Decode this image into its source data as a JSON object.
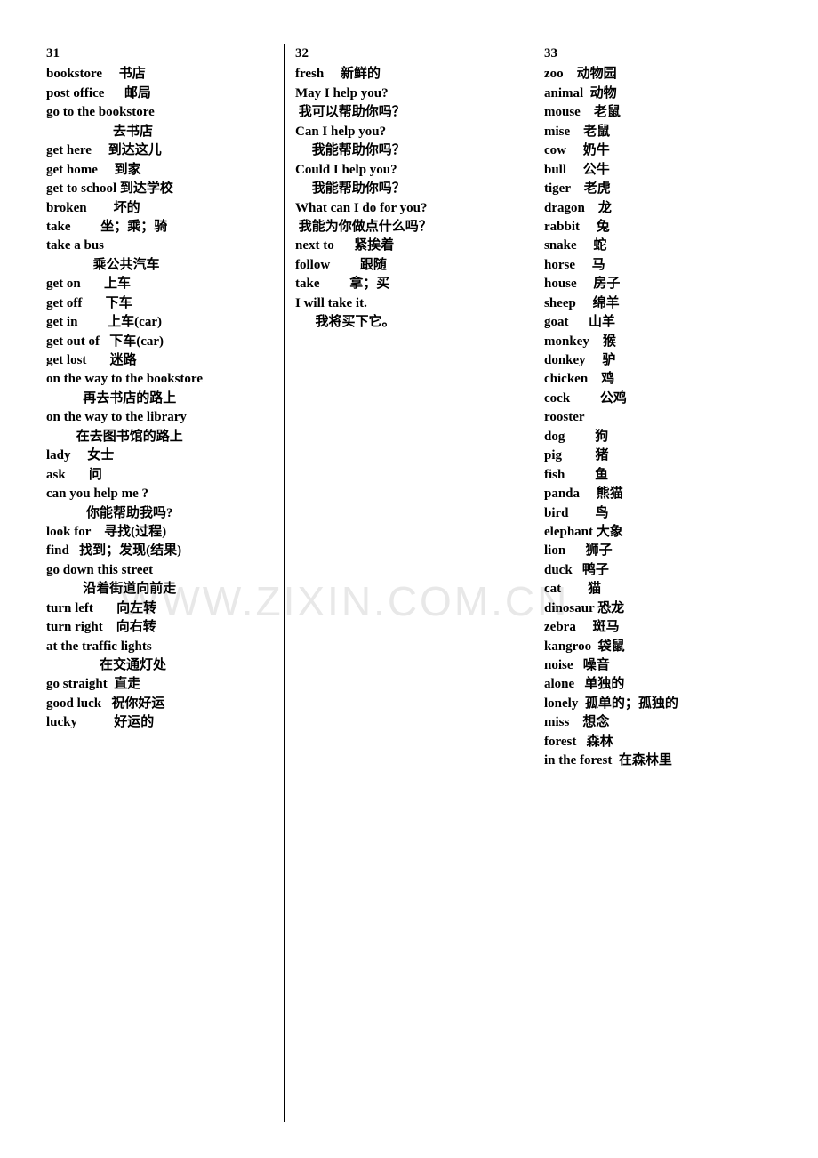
{
  "watermark": "WWW.ZIXIN.COM.CN",
  "columns": [
    {
      "lesson": "31",
      "lines": [
        "bookstore     书店",
        "post office      邮局",
        "go to the bookstore",
        "                    去书店",
        "get here     到达这儿",
        "get home     到家",
        "get to school 到达学校",
        "broken        坏的",
        "take         坐；乘；骑",
        "take a bus",
        "              乘公共汽车",
        "get on       上车",
        "get off       下车",
        "get in         上车(car)",
        "get out of   下车(car)",
        "get lost       迷路",
        "on the way to the bookstore",
        "           再去书店的路上",
        "on the way to the library",
        "         在去图书馆的路上",
        "lady     女士",
        "ask       问",
        "can you help me ?",
        "            你能帮助我吗?",
        "look for    寻找(过程)",
        "find   找到；发现(结果)",
        "go down this street",
        "           沿着街道向前走",
        "turn left       向左转",
        "turn right    向右转",
        "at the traffic lights",
        "                在交通灯处",
        "go straight  直走",
        "good luck   祝你好运",
        "lucky           好运的"
      ]
    },
    {
      "lesson": "32",
      "lines": [
        "fresh     新鲜的",
        "May I help you?",
        " 我可以帮助你吗？",
        "Can I help you?",
        "     我能帮助你吗？",
        "Could I help you?",
        "     我能帮助你吗？",
        "What can I do for you?",
        " 我能为你做点什么吗？",
        "next to      紧挨着",
        "follow         跟随",
        "take         拿；买",
        "I will take it.",
        "      我将买下它。"
      ]
    },
    {
      "lesson": "33",
      "lines": [
        "zoo    动物园",
        "animal  动物",
        "mouse    老鼠",
        "mise    老鼠",
        "cow     奶牛",
        "bull     公牛",
        "tiger    老虎",
        "dragon    龙",
        "rabbit     兔",
        "snake     蛇",
        "horse     马",
        "house     房子",
        "sheep     绵羊",
        "goat      山羊",
        "monkey    猴",
        "donkey     驴",
        "chicken    鸡",
        "cock         公鸡",
        "rooster",
        "dog         狗",
        "pig          猪",
        "fish         鱼",
        "panda     熊猫",
        "bird        鸟",
        "elephant 大象",
        "lion      狮子",
        "duck   鸭子",
        "cat        猫",
        "dinosaur 恐龙",
        "zebra     斑马",
        "kangroo  袋鼠",
        "noise   噪音",
        "alone   单独的",
        "lonely  孤单的；孤独的",
        "miss    想念",
        "forest   森林",
        "in the forest  在森林里"
      ]
    }
  ]
}
